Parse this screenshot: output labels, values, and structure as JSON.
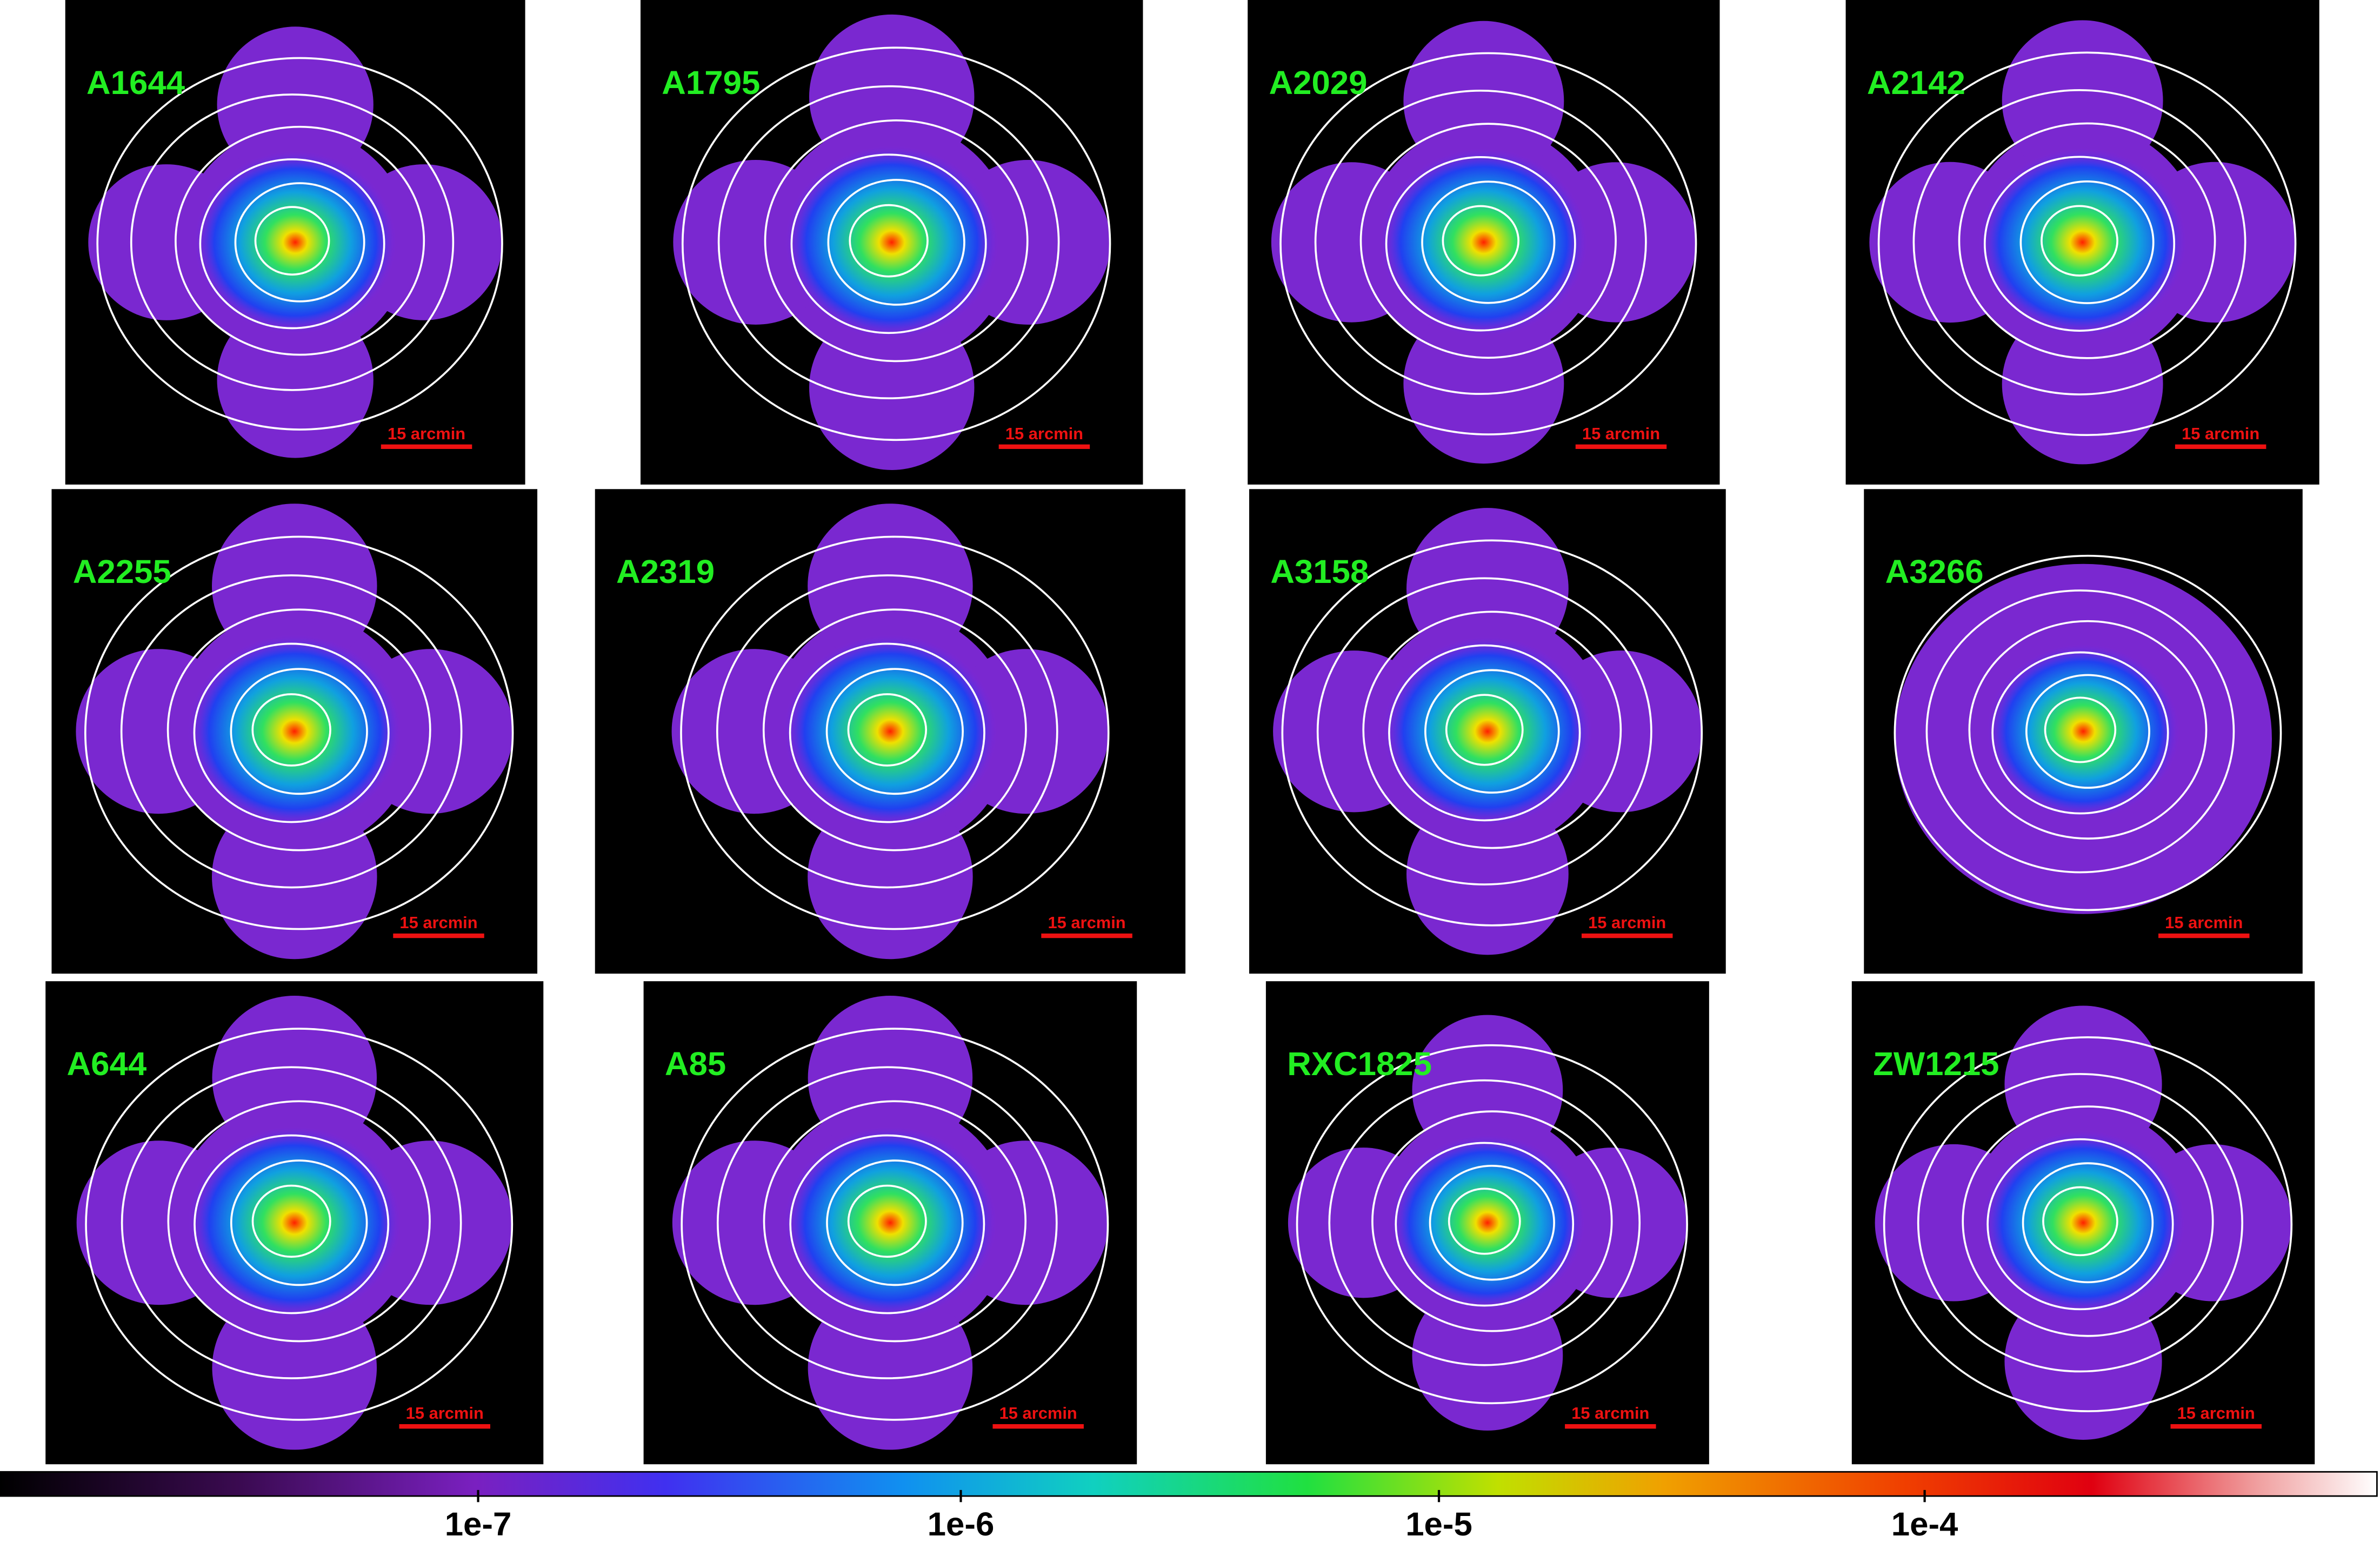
{
  "panels": [
    {
      "name": "A1644",
      "scale_label": "15 arcmin"
    },
    {
      "name": "A1795",
      "scale_label": "15 arcmin"
    },
    {
      "name": "A2029",
      "scale_label": "15 arcmin"
    },
    {
      "name": "A2142",
      "scale_label": "15 arcmin"
    },
    {
      "name": "A2255",
      "scale_label": "15 arcmin"
    },
    {
      "name": "A2319",
      "scale_label": "15 arcmin"
    },
    {
      "name": "A3158",
      "scale_label": "15 arcmin"
    },
    {
      "name": "A3266",
      "scale_label": "15 arcmin"
    },
    {
      "name": "A644",
      "scale_label": "15 arcmin"
    },
    {
      "name": "A85",
      "scale_label": "15 arcmin"
    },
    {
      "name": "RXC1825",
      "scale_label": "15 arcmin"
    },
    {
      "name": "ZW1215",
      "scale_label": "15 arcmin"
    }
  ],
  "colorbar": {
    "tick_labels": [
      "1e-7",
      "1e-6",
      "1e-5",
      "1e-4"
    ]
  }
}
